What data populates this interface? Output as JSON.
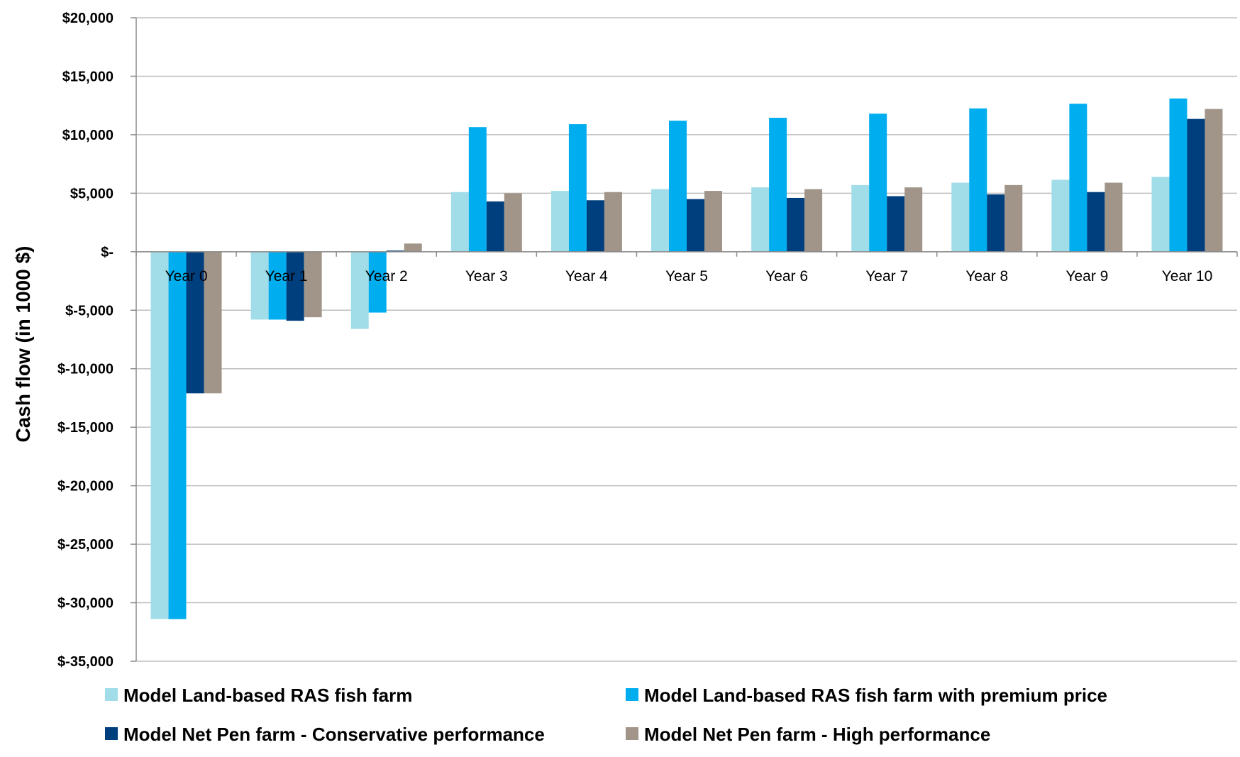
{
  "chart_data": {
    "type": "bar",
    "title": "",
    "xlabel": "",
    "ylabel": "Cash flow (in 1000 $)",
    "categories": [
      "Year 0",
      "Year 1",
      "Year 2",
      "Year 3",
      "Year 4",
      "Year 5",
      "Year 6",
      "Year 7",
      "Year 8",
      "Year 9",
      "Year 10"
    ],
    "ylim": [
      -35000,
      20000
    ],
    "yticks": [
      20000,
      15000,
      10000,
      5000,
      0,
      -5000,
      -10000,
      -15000,
      -20000,
      -25000,
      -30000,
      -35000
    ],
    "ytick_labels": [
      "$20,000",
      "$15,000",
      "$10,000",
      "$5,000",
      "$-",
      "$-5,000",
      "$-10,000",
      "$-15,000",
      "$-20,000",
      "$-25,000",
      "$-30,000",
      "$-35,000"
    ],
    "grid": true,
    "legend_position": "bottom",
    "series": [
      {
        "name": "Model Land-based RAS fish farm",
        "color": "#a1dde9",
        "values": [
          -31400,
          -5800,
          -6600,
          5100,
          5200,
          5350,
          5500,
          5700,
          5900,
          6150,
          6400
        ]
      },
      {
        "name": "Model Land-based RAS fish farm with premium price",
        "color": "#00aeef",
        "values": [
          -31400,
          -5800,
          -5200,
          10650,
          10900,
          11200,
          11450,
          11800,
          12250,
          12650,
          13100
        ]
      },
      {
        "name": "Model Net Pen farm - Conservative performance",
        "color": "#003f7d",
        "values": [
          -12100,
          -5900,
          100,
          4300,
          4400,
          4500,
          4600,
          4750,
          4900,
          5100,
          11350
        ]
      },
      {
        "name": "Model Net Pen farm - High performance",
        "color": "#a09588",
        "values": [
          -12100,
          -5600,
          700,
          5000,
          5100,
          5200,
          5350,
          5500,
          5700,
          5900,
          12200
        ]
      }
    ]
  }
}
